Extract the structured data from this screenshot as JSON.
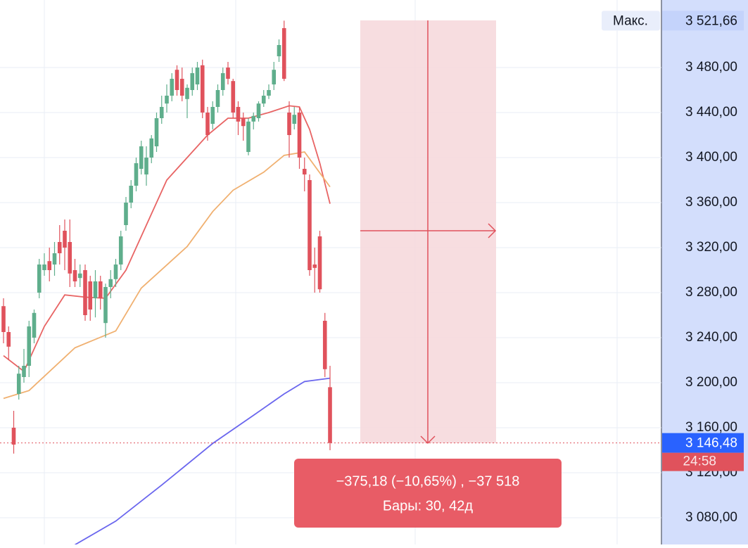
{
  "chart_data": {
    "type": "candlestick",
    "ylim": [
      3056.25,
      3540
    ],
    "yticks": [
      {
        "value": 3080,
        "label": "3 080,00"
      },
      {
        "value": 3120,
        "label": "3 120,00"
      },
      {
        "value": 3160,
        "label": "3 160,00"
      },
      {
        "value": 3200,
        "label": "3 200,00"
      },
      {
        "value": 3240,
        "label": "3 240,00"
      },
      {
        "value": 3280,
        "label": "3 280,00"
      },
      {
        "value": 3320,
        "label": "3 320,00"
      },
      {
        "value": 3360,
        "label": "3 360,00"
      },
      {
        "value": 3400,
        "label": "3 400,00"
      },
      {
        "value": 3440,
        "label": "3 440,00"
      },
      {
        "value": 3480,
        "label": "3 480,00"
      }
    ],
    "up_color": "#5fae8c",
    "down_color": "#e0525c",
    "open": [
      3268,
      3245,
      3160,
      3190,
      3205,
      3215,
      3240,
      3280,
      3300,
      3308,
      3305,
      3325,
      3335,
      3325,
      3300,
      3293,
      3300,
      3290,
      3275,
      3290,
      3253,
      3285,
      3292,
      3305,
      3340,
      3360,
      3375,
      3390,
      3385,
      3400,
      3410,
      3435,
      3448,
      3455,
      3478,
      3470,
      3452,
      3460,
      3465,
      3482,
      3440,
      3430,
      3445,
      3460,
      3480,
      3468,
      3445,
      3435,
      3405,
      3432,
      3435,
      3448,
      3455,
      3465,
      3490,
      3515,
      3440,
      3430,
      3440,
      3390,
      3380,
      3305,
      3330,
      3255,
      3196
    ],
    "high": [
      3275,
      3250,
      3175,
      3215,
      3230,
      3255,
      3265,
      3310,
      3315,
      3320,
      3325,
      3340,
      3345,
      3345,
      3310,
      3305,
      3305,
      3295,
      3300,
      3295,
      3288,
      3300,
      3310,
      3335,
      3365,
      3380,
      3400,
      3415,
      3410,
      3420,
      3440,
      3455,
      3465,
      3475,
      3482,
      3480,
      3465,
      3480,
      3485,
      3487,
      3445,
      3450,
      3465,
      3480,
      3485,
      3470,
      3450,
      3440,
      3435,
      3440,
      3450,
      3460,
      3465,
      3485,
      3505,
      3521.66,
      3450,
      3445,
      3445,
      3400,
      3385,
      3320,
      3335,
      3262,
      3215
    ],
    "low": [
      3235,
      3220,
      3137,
      3185,
      3200,
      3205,
      3235,
      3275,
      3295,
      3290,
      3295,
      3305,
      3300,
      3285,
      3285,
      3285,
      3255,
      3255,
      3258,
      3265,
      3240,
      3275,
      3285,
      3300,
      3335,
      3355,
      3370,
      3385,
      3375,
      3395,
      3405,
      3430,
      3440,
      3450,
      3455,
      3450,
      3435,
      3455,
      3460,
      3435,
      3415,
      3425,
      3440,
      3455,
      3465,
      3435,
      3420,
      3415,
      3402,
      3425,
      3432,
      3445,
      3452,
      3460,
      3485,
      3468,
      3400,
      3425,
      3390,
      3370,
      3295,
      3280,
      3280,
      3205,
      3140
    ],
    "close": [
      3245,
      3232,
      3145,
      3208,
      3215,
      3250,
      3262,
      3305,
      3305,
      3300,
      3315,
      3315,
      3320,
      3297,
      3290,
      3297,
      3260,
      3265,
      3290,
      3275,
      3285,
      3292,
      3305,
      3330,
      3360,
      3375,
      3395,
      3410,
      3400,
      3417,
      3435,
      3445,
      3455,
      3470,
      3460,
      3455,
      3462,
      3475,
      3480,
      3440,
      3420,
      3445,
      3460,
      3475,
      3470,
      3440,
      3432,
      3428,
      3432,
      3437,
      3448,
      3455,
      3460,
      3478,
      3500,
      3470,
      3420,
      3438,
      3400,
      3385,
      3300,
      3302,
      3283,
      3212,
      3146.48
    ],
    "lines": [
      {
        "color": "#e86464",
        "x": [
          0,
          4,
          8,
          12,
          16,
          20,
          24,
          28,
          32,
          36,
          40,
          44,
          48,
          52,
          56,
          58,
          60,
          62,
          64
        ],
        "values": [
          3224,
          3210,
          3250,
          3278,
          3276,
          3275,
          3300,
          3340,
          3380,
          3400,
          3420,
          3435,
          3435,
          3440,
          3446,
          3445,
          3425,
          3395,
          3359
        ]
      },
      {
        "color": "#f0b070",
        "x": [
          0,
          5,
          14,
          22,
          27,
          36,
          41,
          45,
          51,
          55,
          59,
          64
        ],
        "values": [
          3186,
          3193,
          3231,
          3246,
          3284,
          3321,
          3352,
          3371,
          3387,
          3402,
          3405,
          3374
        ]
      },
      {
        "color": "#6a66ee",
        "x": [
          14,
          22,
          31,
          41,
          49,
          55,
          59,
          64
        ],
        "values": [
          3056,
          3077,
          3109,
          3146,
          3171,
          3190,
          3201,
          3204
        ]
      }
    ],
    "max_label": {
      "text": "Макс.",
      "value": 3521.66,
      "label": "3 521,66"
    },
    "last_price": {
      "value": 3146.48,
      "label": "3 146,48",
      "timer": "24:58"
    },
    "measure": {
      "line1": "−375,18 (−10,65%) , −37 518",
      "line2": "Бары: 30, 42д"
    }
  }
}
